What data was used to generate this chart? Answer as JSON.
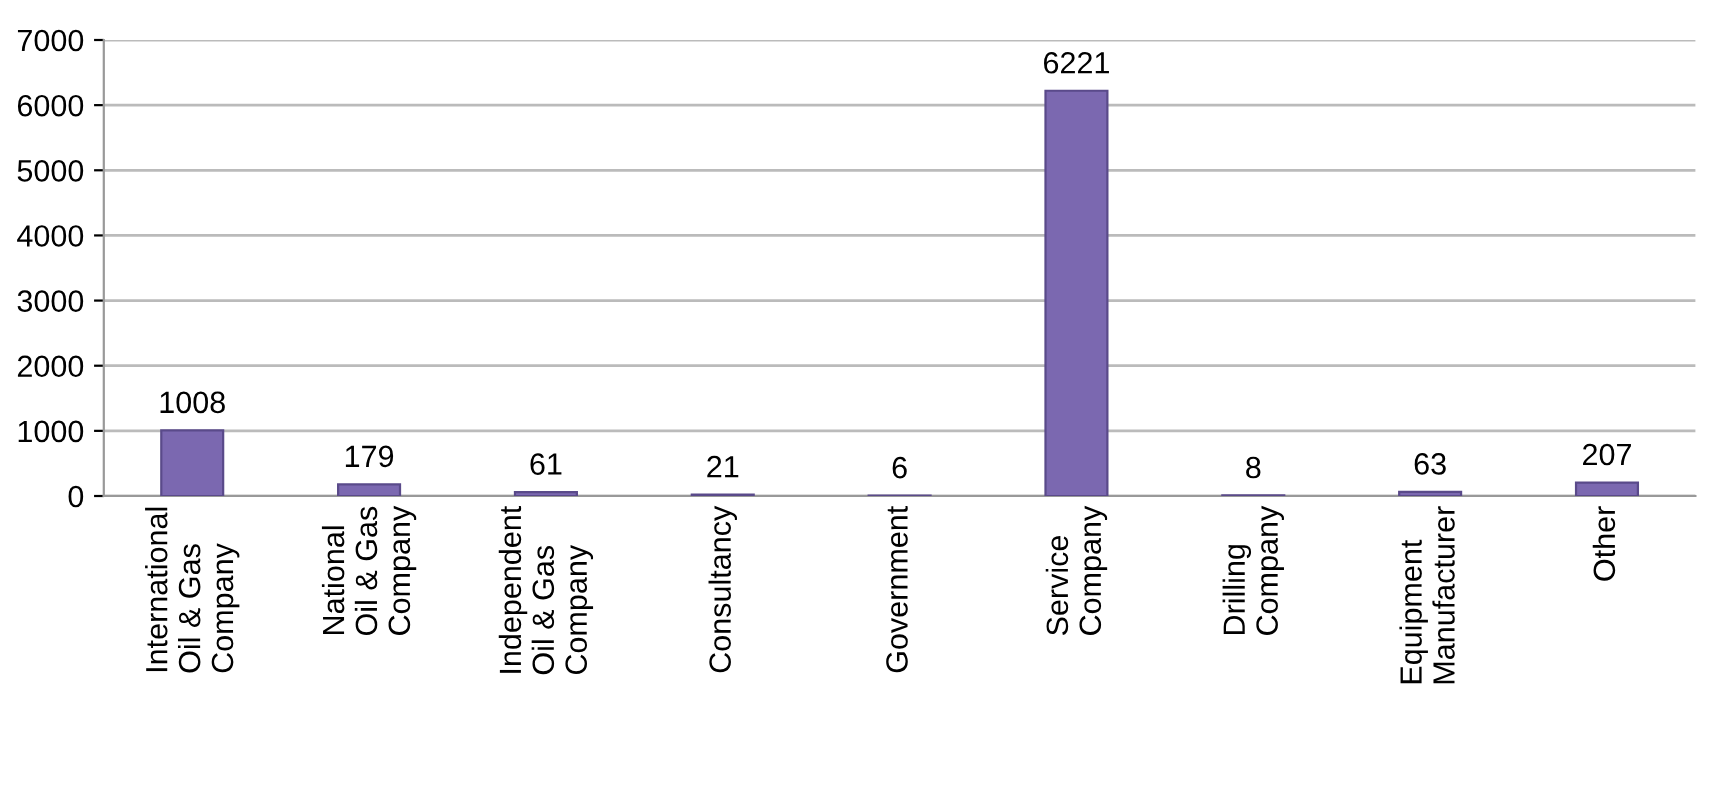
{
  "chart_data": {
    "type": "bar",
    "categories": [
      "International\nOil & Gas\nCompany",
      "National\nOil & Gas\nCompany",
      "Independent\nOil & Gas\nCompany",
      "Consultancy",
      "Government",
      "Service\nCompany",
      "Drilling\nCompany",
      "Equipment\nManufacturer",
      "Other"
    ],
    "values": [
      1008,
      179,
      61,
      21,
      6,
      6221,
      8,
      63,
      207
    ],
    "color": "#7b68b0",
    "ylim": [
      0,
      7000
    ],
    "yticks": [
      0,
      1000,
      2000,
      3000,
      4000,
      5000,
      6000,
      7000
    ],
    "grid": "y",
    "data_labels": true
  }
}
